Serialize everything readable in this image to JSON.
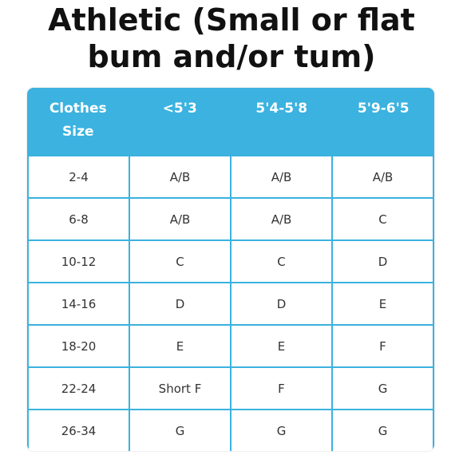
{
  "title": {
    "line1": "Athletic (Small or flat",
    "line2": "bum and/or tum)"
  },
  "table": {
    "header_color": "#3bb2df",
    "headers": [
      "Clothes\nSize",
      "<5'3",
      "5'4-5'8",
      "5'9-6'5"
    ],
    "rows": [
      [
        "2-4",
        "A/B",
        "A/B",
        "A/B"
      ],
      [
        "6-8",
        "A/B",
        "A/B",
        "C"
      ],
      [
        "10-12",
        "C",
        "C",
        "D"
      ],
      [
        "14-16",
        "D",
        "D",
        "E"
      ],
      [
        "18-20",
        "E",
        "E",
        "F"
      ],
      [
        "22-24",
        "Short F",
        "F",
        "G"
      ],
      [
        "26-34",
        "G",
        "G",
        "G"
      ]
    ]
  }
}
